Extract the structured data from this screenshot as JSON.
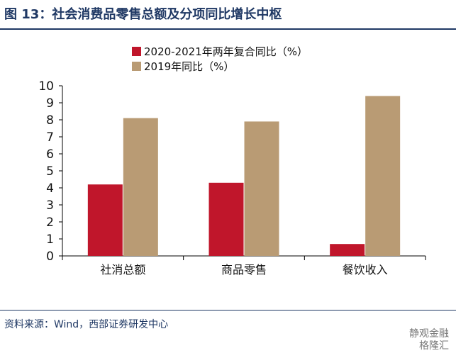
{
  "figure": {
    "title": "图 13：社会消费品零售总额及分项同比增长中枢",
    "source": "资料来源：Wind，西部证券研发中心",
    "watermark": [
      "静观金融",
      "格隆汇"
    ]
  },
  "chart_data": {
    "type": "bar",
    "categories": [
      "社消总额",
      "商品零售",
      "餐饮收入"
    ],
    "series": [
      {
        "name": "2020-2021年两年复合同比（%）",
        "color": "#c0162b",
        "values": [
          4.2,
          4.3,
          0.7
        ]
      },
      {
        "name": "2019年同比（%）",
        "color": "#b99b74",
        "values": [
          8.1,
          7.9,
          9.4
        ]
      }
    ],
    "ylim": [
      0,
      10
    ],
    "yticks": [
      0,
      1,
      2,
      3,
      4,
      5,
      6,
      7,
      8,
      9,
      10
    ],
    "grid": false,
    "legend_position": "top-left"
  }
}
